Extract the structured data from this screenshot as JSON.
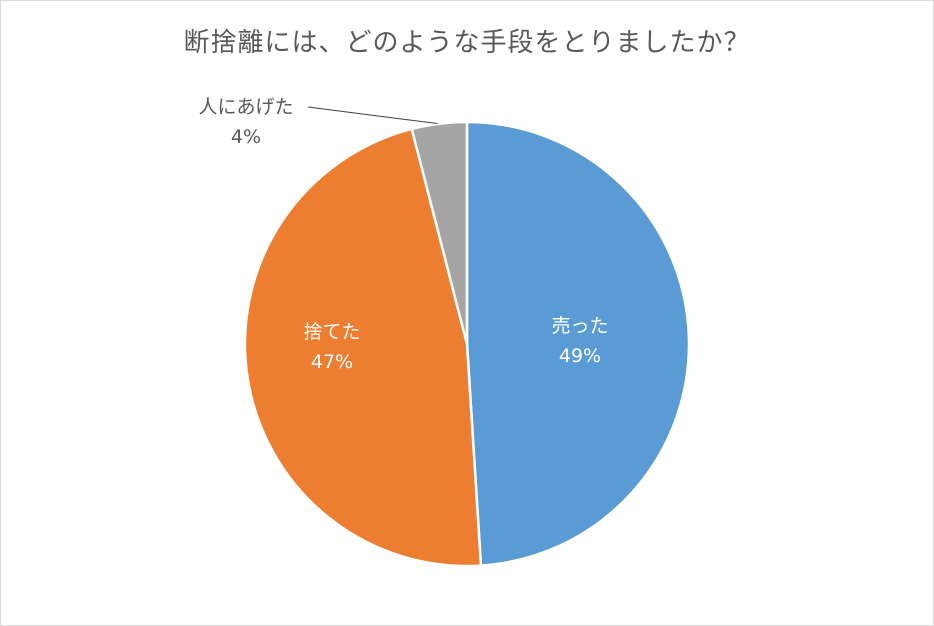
{
  "chart_data": {
    "type": "pie",
    "title": "断捨離には、どのような手段をとりましたか？",
    "slices": [
      {
        "label": "売った",
        "value": 49,
        "display": "49%",
        "color": "#5b9bd5"
      },
      {
        "label": "捨てた",
        "value": 47,
        "display": "47%",
        "color": "#ed7d31"
      },
      {
        "label": "人にあげた",
        "value": 4,
        "display": "4%",
        "color": "#a5a5a5"
      }
    ],
    "start_angle": "12 o'clock",
    "direction": "clockwise",
    "legend": "none",
    "data_labels": "category name and percentage"
  }
}
